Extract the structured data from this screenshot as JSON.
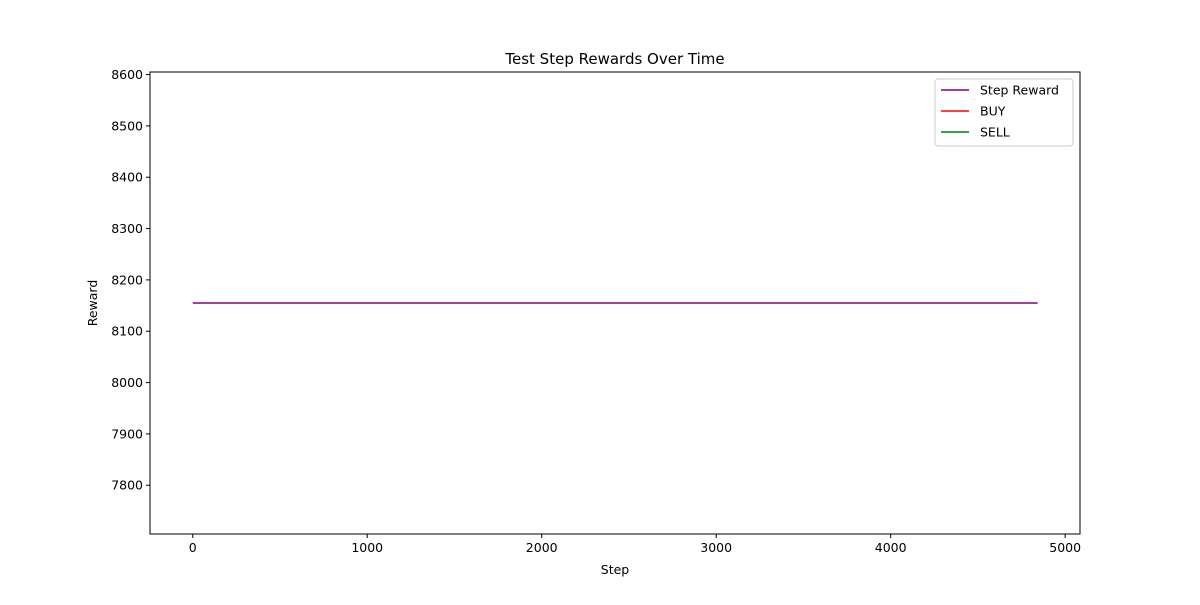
{
  "chart_data": {
    "type": "line",
    "title": "Test Step Rewards Over Time",
    "xlabel": "Step",
    "ylabel": "Reward",
    "xlim": [
      -245,
      5085
    ],
    "ylim": [
      7705,
      8605
    ],
    "xticks": [
      0,
      1000,
      2000,
      3000,
      4000,
      5000
    ],
    "yticks": [
      7800,
      7900,
      8000,
      8100,
      8200,
      8300,
      8400,
      8500,
      8600
    ],
    "grid": false,
    "legend_position": "top-right",
    "series": [
      {
        "name": "Step Reward",
        "color": "#800080",
        "x": [
          0,
          4842
        ],
        "y": [
          8155,
          8155
        ]
      },
      {
        "name": "BUY",
        "color": "#ff0000",
        "x": [],
        "y": []
      },
      {
        "name": "SELL",
        "color": "#008000",
        "x": [],
        "y": []
      }
    ]
  }
}
